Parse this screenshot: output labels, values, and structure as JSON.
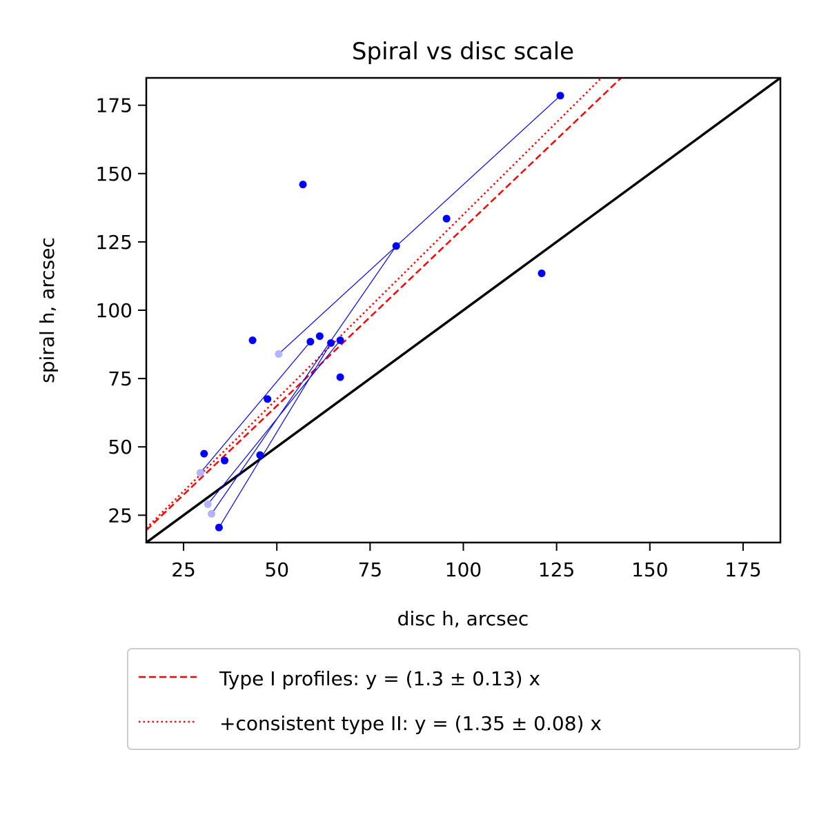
{
  "chart_data": {
    "type": "scatter",
    "title": "Spiral vs disc scale",
    "xlabel": "disc h, arcsec",
    "ylabel": "spiral h, arcsec",
    "xlim": [
      15,
      185
    ],
    "ylim": [
      15,
      185
    ],
    "xticks": [
      25,
      50,
      75,
      100,
      125,
      150,
      175
    ],
    "yticks": [
      25,
      50,
      75,
      100,
      125,
      150,
      175
    ],
    "grid": false,
    "legend_position": "below plot",
    "colors": {
      "points": "#0000ff",
      "faded_points": "#b3b3ff",
      "connectors": "#0000ff",
      "identity_line": "#000000",
      "fit_lines": "#ff0000"
    },
    "series": [
      {
        "kind": "points",
        "points": [
          [
            57,
            146
          ],
          [
            126,
            178.5
          ],
          [
            95.5,
            133.5
          ],
          [
            82,
            123.5
          ],
          [
            121,
            113.5
          ],
          [
            43.5,
            89
          ],
          [
            61.5,
            90.5
          ],
          [
            59,
            88.5
          ],
          [
            64.5,
            88
          ],
          [
            67,
            89
          ],
          [
            67,
            75.5
          ],
          [
            47.5,
            67.5
          ],
          [
            30.5,
            47.5
          ],
          [
            45.5,
            47
          ],
          [
            36,
            45
          ],
          [
            34.5,
            20.5
          ]
        ]
      },
      {
        "kind": "faded points",
        "points": [
          [
            50.5,
            84
          ],
          [
            29.5,
            40.5
          ],
          [
            31.5,
            29
          ],
          [
            32.5,
            25.5
          ]
        ]
      },
      {
        "kind": "connectors",
        "segments": [
          [
            [
              50.5,
              84
            ],
            [
              126,
              178.5
            ]
          ],
          [
            [
              32.5,
              25.5
            ],
            [
              82,
              123.5
            ]
          ],
          [
            [
              29.5,
              40.5
            ],
            [
              59,
              88.5
            ]
          ],
          [
            [
              31.5,
              29
            ],
            [
              67,
              89
            ]
          ],
          [
            [
              34.5,
              20.5
            ],
            [
              64.5,
              88
            ]
          ]
        ]
      },
      {
        "kind": "identity line",
        "slope": 1
      },
      {
        "name": "Type I profiles: y = (1.3 ± 0.13) x",
        "slope": 1.3,
        "style": "dashed"
      },
      {
        "name": "+consistent type II: y = (1.35 ± 0.08) x",
        "slope": 1.35,
        "style": "dotted"
      }
    ]
  }
}
